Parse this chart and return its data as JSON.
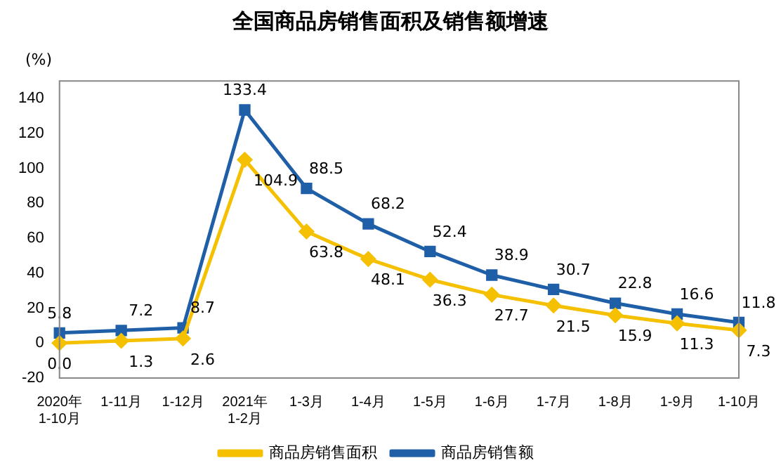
{
  "chart_data": {
    "type": "line",
    "title": "全国商品房销售面积及销售额增速",
    "ylabel": "(%)",
    "categories": [
      "2020年\n1-10月",
      "1-11月",
      "1-12月",
      "2021年\n1-2月",
      "1-3月",
      "1-4月",
      "1-5月",
      "1-6月",
      "1-7月",
      "1-8月",
      "1-9月",
      "1-10月"
    ],
    "series": [
      {
        "name": "商品房销售面积",
        "color": "#f5c000",
        "marker": "diamond",
        "values": [
          0.0,
          1.3,
          2.6,
          104.9,
          63.8,
          48.1,
          36.3,
          27.7,
          21.5,
          15.9,
          11.3,
          7.3
        ],
        "value_labels": [
          "0.0",
          "1.3",
          "2.6",
          "104.9",
          "63.8",
          "48.1",
          "36.3",
          "27.7",
          "21.5",
          "15.9",
          "11.3",
          "7.3"
        ]
      },
      {
        "name": "商品房销售额",
        "color": "#1f5fa8",
        "marker": "square",
        "values": [
          5.8,
          7.2,
          8.7,
          133.4,
          88.5,
          68.2,
          52.4,
          38.9,
          30.7,
          22.8,
          16.6,
          11.8
        ],
        "value_labels": [
          "5.8",
          "7.2",
          "8.7",
          "133.4",
          "88.5",
          "68.2",
          "52.4",
          "38.9",
          "30.7",
          "22.8",
          "16.6",
          "11.8"
        ]
      }
    ],
    "ylim": [
      -20,
      150
    ],
    "yticks": [
      -20,
      0,
      20,
      40,
      60,
      80,
      100,
      120,
      140
    ],
    "grid": false,
    "legend": "bottom"
  }
}
